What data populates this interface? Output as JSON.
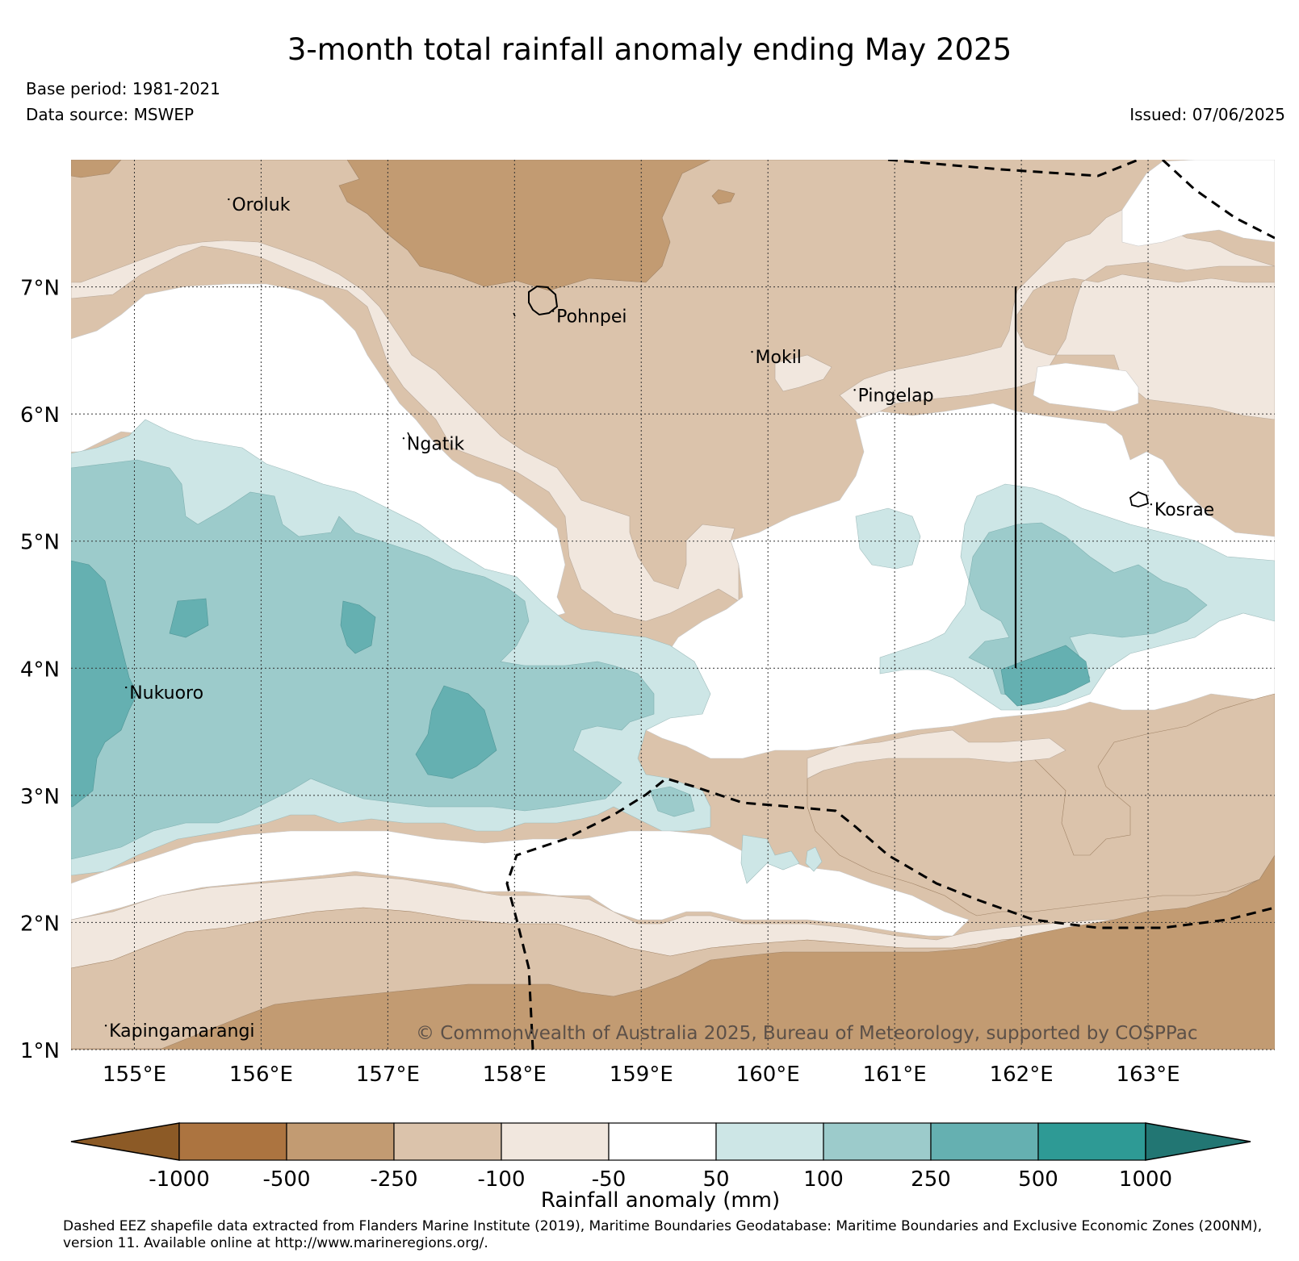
{
  "header": {
    "title": "3-month total rainfall anomaly ending May 2025",
    "base_period": "Base period: 1981-2021",
    "data_source": "Data source: MSWEP",
    "issued": "Issued: 07/06/2025"
  },
  "map": {
    "extent": {
      "lon": [
        154.5,
        164.0
      ],
      "lat": [
        1.0,
        8.0
      ]
    },
    "lat_ticks": [
      {
        "value": 7,
        "label": "7°N"
      },
      {
        "value": 6,
        "label": "6°N"
      },
      {
        "value": 5,
        "label": "5°N"
      },
      {
        "value": 4,
        "label": "4°N"
      },
      {
        "value": 3,
        "label": "3°N"
      },
      {
        "value": 2,
        "label": "2°N"
      },
      {
        "value": 1,
        "label": "1°N"
      }
    ],
    "lon_ticks": [
      {
        "value": 155,
        "label": "155°E"
      },
      {
        "value": 156,
        "label": "156°E"
      },
      {
        "value": 157,
        "label": "157°E"
      },
      {
        "value": 158,
        "label": "158°E"
      },
      {
        "value": 159,
        "label": "159°E"
      },
      {
        "value": 160,
        "label": "160°E"
      },
      {
        "value": 161,
        "label": "161°E"
      },
      {
        "value": 162,
        "label": "162°E"
      },
      {
        "value": 163,
        "label": "163°E"
      }
    ],
    "places": [
      {
        "name": "Oroluk",
        "lon": 155.77,
        "lat": 7.6
      },
      {
        "name": "Pohnpei",
        "lon": 158.33,
        "lat": 6.72
      },
      {
        "name": "Mokil",
        "lon": 159.9,
        "lat": 6.4
      },
      {
        "name": "Pingelap",
        "lon": 160.71,
        "lat": 6.1
      },
      {
        "name": "Ngatik",
        "lon": 157.15,
        "lat": 5.72
      },
      {
        "name": "Kosrae",
        "lon": 163.05,
        "lat": 5.2
      },
      {
        "name": "Nukuoro",
        "lon": 154.96,
        "lat": 3.76
      },
      {
        "name": "Kapingamarangi",
        "lon": 154.8,
        "lat": 1.1
      }
    ],
    "copyright": "© Commonwealth of Australia 2025, Bureau of Meteorology, supported by COSPPac"
  },
  "colorbar": {
    "label": "Rainfall anomaly (mm)",
    "ticks": [
      "-1000",
      "-500",
      "-250",
      "-100",
      "-50",
      "50",
      "100",
      "250",
      "500",
      "1000"
    ],
    "colors": [
      "#8c5a26",
      "#ac7440",
      "#c29b72",
      "#dbc3ab",
      "#f1e7de",
      "#ffffff",
      "#cde6e6",
      "#9ccbcb",
      "#65b0b1",
      "#2e9a95",
      "#227673"
    ],
    "extend": "both"
  },
  "footnote": "Dashed EEZ shapefile data extracted from Flanders Marine Institute (2019), Maritime Boundaries Geodatabase: Maritime Boundaries and Exclusive Economic Zones (200NM), version 11. Available online at http://www.marineregions.org/."
}
